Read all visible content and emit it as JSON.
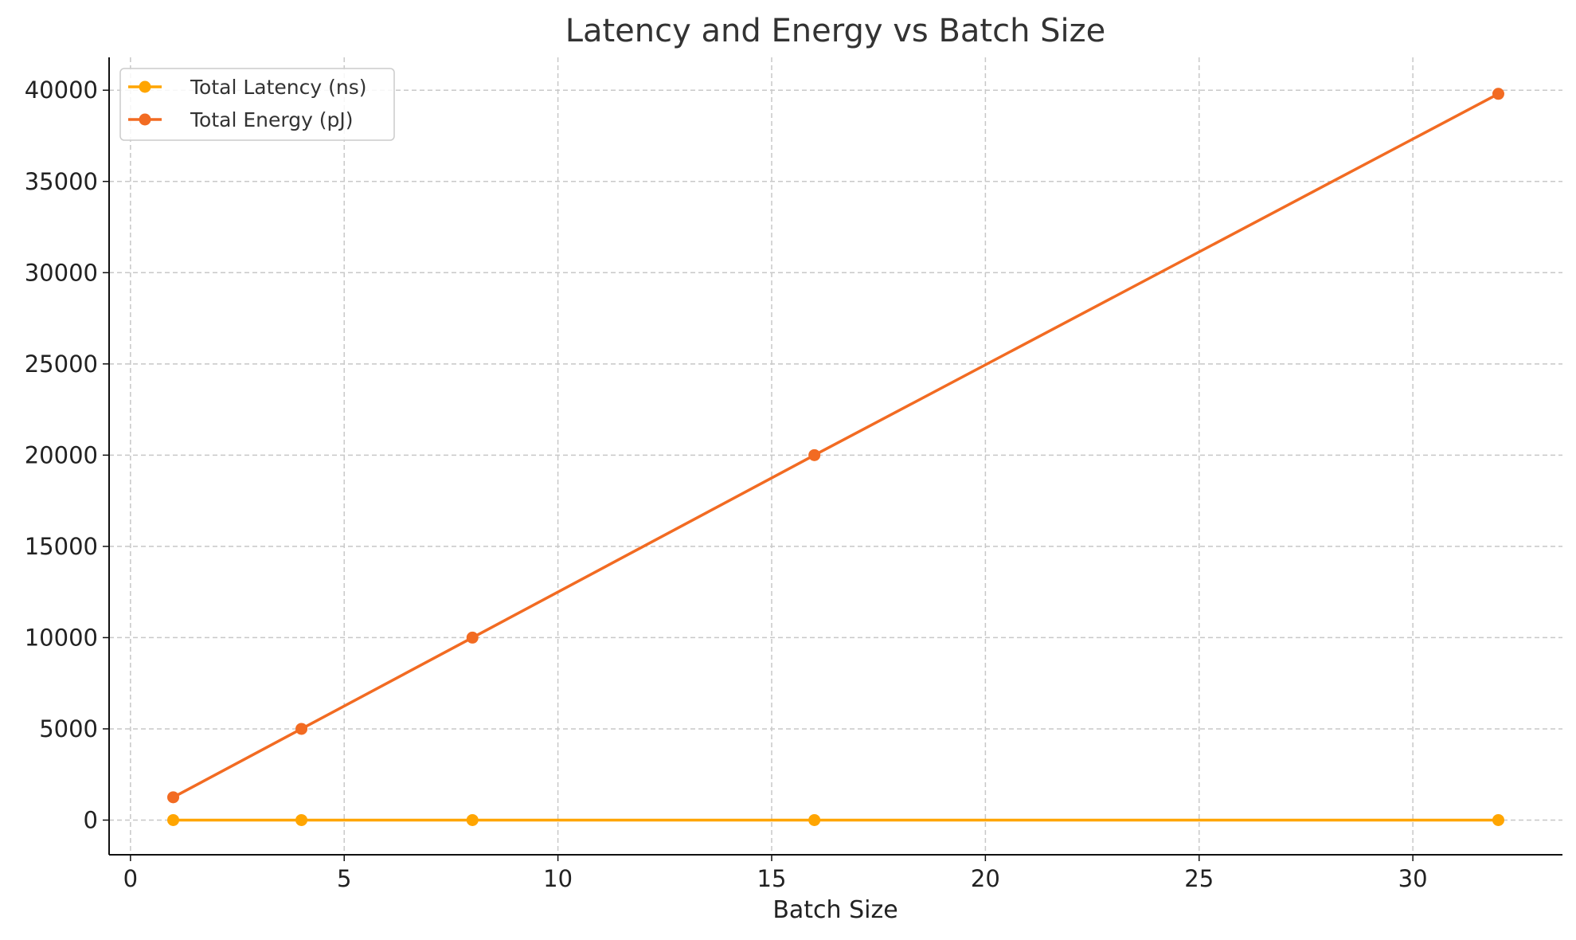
{
  "chart_data": {
    "type": "line",
    "title": "Latency and Energy vs Batch Size",
    "xlabel": "Batch Size",
    "ylabel": "",
    "xlim": [
      -0.5,
      33.5
    ],
    "ylim": [
      -1900,
      41800
    ],
    "xticks": [
      0,
      5,
      10,
      15,
      20,
      25,
      30
    ],
    "yticks": [
      0,
      5000,
      10000,
      15000,
      20000,
      25000,
      30000,
      35000,
      40000
    ],
    "grid": true,
    "legend_position": "top-left",
    "series": [
      {
        "name": "Total Latency (ns)",
        "color": "#FFA500",
        "x": [
          1,
          4,
          8,
          16,
          32
        ],
        "y": [
          0,
          0,
          0,
          0,
          0
        ]
      },
      {
        "name": "Total Energy (pJ)",
        "color": "#F26B22",
        "x": [
          1,
          4,
          8,
          16,
          32
        ],
        "y": [
          1250,
          5000,
          10000,
          20000,
          39800
        ]
      }
    ]
  }
}
